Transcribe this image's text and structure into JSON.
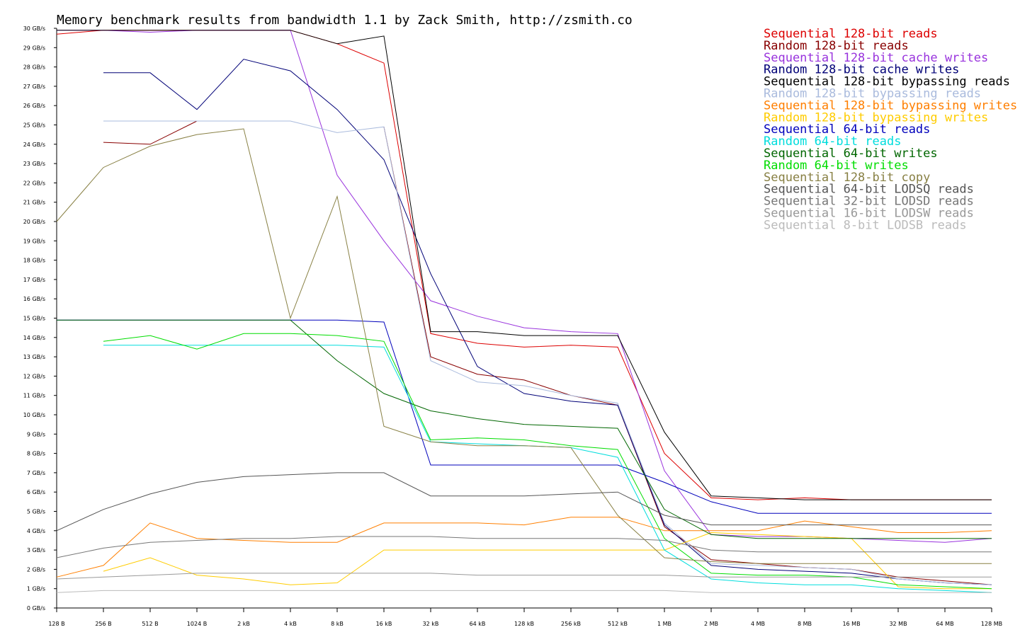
{
  "chart_data": {
    "type": "line",
    "title": "Memory benchmark results from bandwidth 1.1 by Zack Smith, http://zsmith.co",
    "xlabel": "",
    "ylabel": "",
    "x_scale": "log2",
    "ylim": [
      0,
      30
    ],
    "grid": false,
    "legend_position": "top-right",
    "x": [
      "128 B",
      "256 B",
      "512 B",
      "1024 B",
      "2 kB",
      "4 kB",
      "8 kB",
      "16 kB",
      "32 kB",
      "64 kB",
      "128 kB",
      "256 kB",
      "512 kB",
      "1 MB",
      "2 MB",
      "4 MB",
      "8 MB",
      "16 MB",
      "32 MB",
      "64 MB",
      "128 MB"
    ],
    "y_ticks": [
      "0 GB/s",
      "1 GB/s",
      "2 GB/s",
      "3 GB/s",
      "4 GB/s",
      "5 GB/s",
      "6 GB/s",
      "7 GB/s",
      "8 GB/s",
      "9 GB/s",
      "10 GB/s",
      "11 GB/s",
      "12 GB/s",
      "13 GB/s",
      "14 GB/s",
      "15 GB/s",
      "16 GB/s",
      "17 GB/s",
      "18 GB/s",
      "19 GB/s",
      "20 GB/s",
      "21 GB/s",
      "22 GB/s",
      "23 GB/s",
      "24 GB/s",
      "25 GB/s",
      "26 GB/s",
      "27 GB/s",
      "28 GB/s",
      "29 GB/s",
      "30 GB/s"
    ],
    "series": [
      {
        "name": "Sequential 128-bit reads",
        "color": "#dd0000",
        "values": [
          29.7,
          29.9,
          29.9,
          29.9,
          29.9,
          29.9,
          29.2,
          28.2,
          14.2,
          13.7,
          13.5,
          13.6,
          13.5,
          8.0,
          5.7,
          5.6,
          5.7,
          5.6,
          5.6,
          5.6,
          5.6
        ]
      },
      {
        "name": "Random 128-bit reads",
        "color": "#880000",
        "values": [
          null,
          24.1,
          24.0,
          25.2,
          null,
          null,
          null,
          24.9,
          13.0,
          12.1,
          11.8,
          11.0,
          10.5,
          4.2,
          2.5,
          2.3,
          2.1,
          2.0,
          1.6,
          1.4,
          1.2
        ]
      },
      {
        "name": "Sequential 128-bit cache writes",
        "color": "#9933dd",
        "values": [
          29.9,
          29.9,
          29.8,
          29.9,
          29.9,
          29.9,
          22.4,
          19.0,
          15.9,
          15.1,
          14.5,
          14.3,
          14.2,
          7.1,
          3.8,
          3.7,
          3.7,
          3.6,
          3.5,
          3.4,
          3.6
        ]
      },
      {
        "name": "Random 128-bit cache writes",
        "color": "#000077",
        "values": [
          null,
          27.7,
          27.7,
          25.8,
          28.4,
          27.8,
          25.8,
          23.2,
          17.3,
          12.5,
          11.1,
          10.7,
          10.5,
          4.3,
          2.2,
          2.0,
          1.9,
          1.8,
          1.5,
          1.3,
          1.2
        ]
      },
      {
        "name": "Sequential 128-bit bypassing reads",
        "color": "#000000",
        "values": [
          29.9,
          29.9,
          29.9,
          29.9,
          29.9,
          29.9,
          29.2,
          29.6,
          14.3,
          14.3,
          14.1,
          14.1,
          14.1,
          9.1,
          5.8,
          5.7,
          5.6,
          5.6,
          5.6,
          5.6,
          5.6
        ]
      },
      {
        "name": "Random 128-bit bypassing reads",
        "color": "#aabbdd",
        "values": [
          null,
          25.2,
          25.2,
          25.2,
          25.2,
          25.2,
          24.6,
          24.9,
          12.8,
          11.7,
          11.5,
          11.0,
          10.6,
          4.4,
          2.3,
          2.2,
          2.1,
          2.0,
          1.5,
          1.3,
          1.2
        ]
      },
      {
        "name": "Sequential 128-bit bypassing writes",
        "color": "#ff7f00",
        "values": [
          1.6,
          2.2,
          4.4,
          3.6,
          3.5,
          3.4,
          3.4,
          4.4,
          4.4,
          4.4,
          4.3,
          4.7,
          4.7,
          4.0,
          4.0,
          4.0,
          4.5,
          4.2,
          3.9,
          3.9,
          4.0
        ]
      },
      {
        "name": "Random 128-bit bypassing writes",
        "color": "#ffcc00",
        "values": [
          null,
          1.9,
          2.6,
          1.7,
          1.5,
          1.2,
          1.3,
          3.0,
          3.0,
          3.0,
          3.0,
          3.0,
          3.0,
          3.0,
          3.9,
          3.8,
          3.7,
          3.6,
          1.1,
          1.0,
          1.0
        ]
      },
      {
        "name": "Sequential 64-bit reads",
        "color": "#0000bb",
        "values": [
          14.9,
          14.9,
          14.9,
          14.9,
          14.9,
          14.9,
          14.9,
          14.8,
          7.4,
          7.4,
          7.4,
          7.4,
          7.4,
          6.5,
          5.5,
          4.9,
          4.9,
          4.9,
          4.9,
          4.9,
          4.9
        ]
      },
      {
        "name": "Random 64-bit reads",
        "color": "#00dddd",
        "values": [
          null,
          13.6,
          13.6,
          13.6,
          13.6,
          13.6,
          13.6,
          13.5,
          8.6,
          8.5,
          8.4,
          8.3,
          7.8,
          3.0,
          1.5,
          1.3,
          1.2,
          1.2,
          1.0,
          0.9,
          0.8
        ]
      },
      {
        "name": "Sequential 64-bit writes",
        "color": "#006600",
        "values": [
          14.9,
          14.9,
          14.9,
          14.9,
          14.9,
          14.9,
          12.8,
          11.1,
          10.2,
          9.8,
          9.5,
          9.4,
          9.3,
          5.1,
          3.8,
          3.6,
          3.6,
          3.6,
          3.6,
          3.6,
          3.6
        ]
      },
      {
        "name": "Random 64-bit writes",
        "color": "#00dd00",
        "values": [
          null,
          13.8,
          14.1,
          13.4,
          14.2,
          14.2,
          14.1,
          13.8,
          8.7,
          8.8,
          8.7,
          8.4,
          8.2,
          3.6,
          1.8,
          1.7,
          1.7,
          1.6,
          1.2,
          1.1,
          1.0
        ]
      },
      {
        "name": "Sequential 128-bit copy",
        "color": "#888044",
        "values": [
          20.0,
          22.8,
          23.9,
          24.5,
          24.8,
          15.0,
          21.3,
          9.4,
          8.6,
          8.4,
          8.4,
          8.3,
          4.8,
          2.6,
          2.4,
          2.3,
          2.3,
          2.3,
          2.3,
          2.3,
          2.3
        ]
      },
      {
        "name": "Sequential 64-bit LODSQ reads",
        "color": "#555555",
        "values": [
          4.0,
          5.1,
          5.9,
          6.5,
          6.8,
          6.9,
          7.0,
          7.0,
          5.8,
          5.8,
          5.8,
          5.9,
          6.0,
          4.8,
          4.3,
          4.3,
          4.3,
          4.3,
          4.3,
          4.3,
          4.3
        ]
      },
      {
        "name": "Sequential 32-bit LODSD reads",
        "color": "#777777",
        "values": [
          2.6,
          3.1,
          3.4,
          3.5,
          3.6,
          3.6,
          3.7,
          3.7,
          3.7,
          3.6,
          3.6,
          3.6,
          3.6,
          3.5,
          3.0,
          2.9,
          2.9,
          2.9,
          2.9,
          2.9,
          2.9
        ]
      },
      {
        "name": "Sequential 16-bit LODSW reads",
        "color": "#999999",
        "values": [
          1.5,
          1.6,
          1.7,
          1.8,
          1.8,
          1.8,
          1.8,
          1.8,
          1.8,
          1.7,
          1.7,
          1.7,
          1.7,
          1.7,
          1.6,
          1.6,
          1.6,
          1.6,
          1.6,
          1.6,
          1.6
        ]
      },
      {
        "name": "Sequential 8-bit LODSB reads",
        "color": "#bbbbbb",
        "values": [
          0.8,
          0.9,
          0.9,
          0.9,
          0.9,
          0.9,
          0.9,
          0.9,
          0.9,
          0.9,
          0.9,
          0.9,
          0.9,
          0.9,
          0.8,
          0.8,
          0.8,
          0.8,
          0.8,
          0.8,
          0.8
        ]
      }
    ]
  }
}
